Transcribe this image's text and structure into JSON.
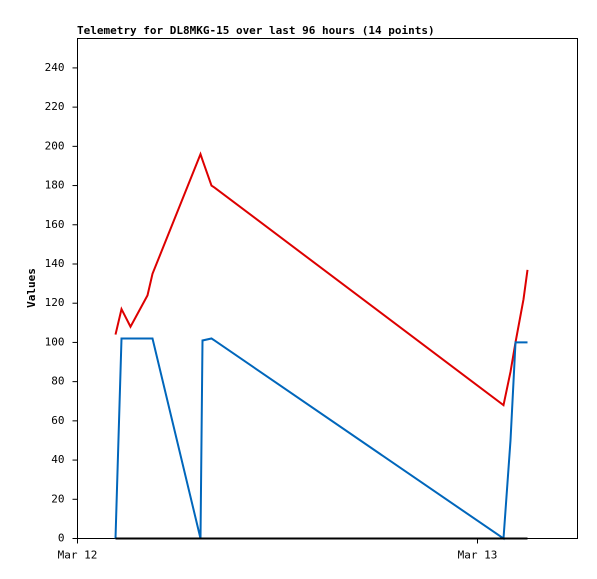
{
  "chart_data": {
    "type": "line",
    "title": "Telemetry for DL8MKG-15 over last 96 hours (14 points)",
    "y_label": "Values",
    "x": [
      0.095,
      0.11,
      0.1325,
      0.175,
      0.1875,
      0.3075,
      0.3125,
      0.335,
      0.3425,
      1.065,
      1.0825,
      1.095,
      1.115,
      1.125
    ],
    "xlim": [
      0,
      1.25
    ],
    "xticks": [
      {
        "value": 0,
        "label": "Mar 12"
      },
      {
        "value": 1,
        "label": "Mar 13"
      }
    ],
    "ylim": [
      0,
      255
    ],
    "yticks": [
      0,
      20,
      40,
      60,
      80,
      100,
      120,
      140,
      160,
      180,
      200,
      220,
      240
    ],
    "grid": false,
    "series": [
      {
        "color": "#dd0000",
        "values": [
          104,
          117,
          108,
          124,
          135,
          196,
          193,
          180,
          179,
          68,
          85,
          100,
          122,
          137
        ]
      },
      {
        "color": "#0066bb",
        "values": [
          0,
          102,
          102,
          102,
          102,
          0,
          101,
          102,
          101,
          0,
          50,
          100,
          100,
          100
        ]
      },
      {
        "color": "#000000",
        "values": [
          0,
          0,
          0,
          0,
          0,
          0,
          0,
          0,
          0,
          0,
          0,
          0,
          0,
          0
        ]
      }
    ]
  }
}
